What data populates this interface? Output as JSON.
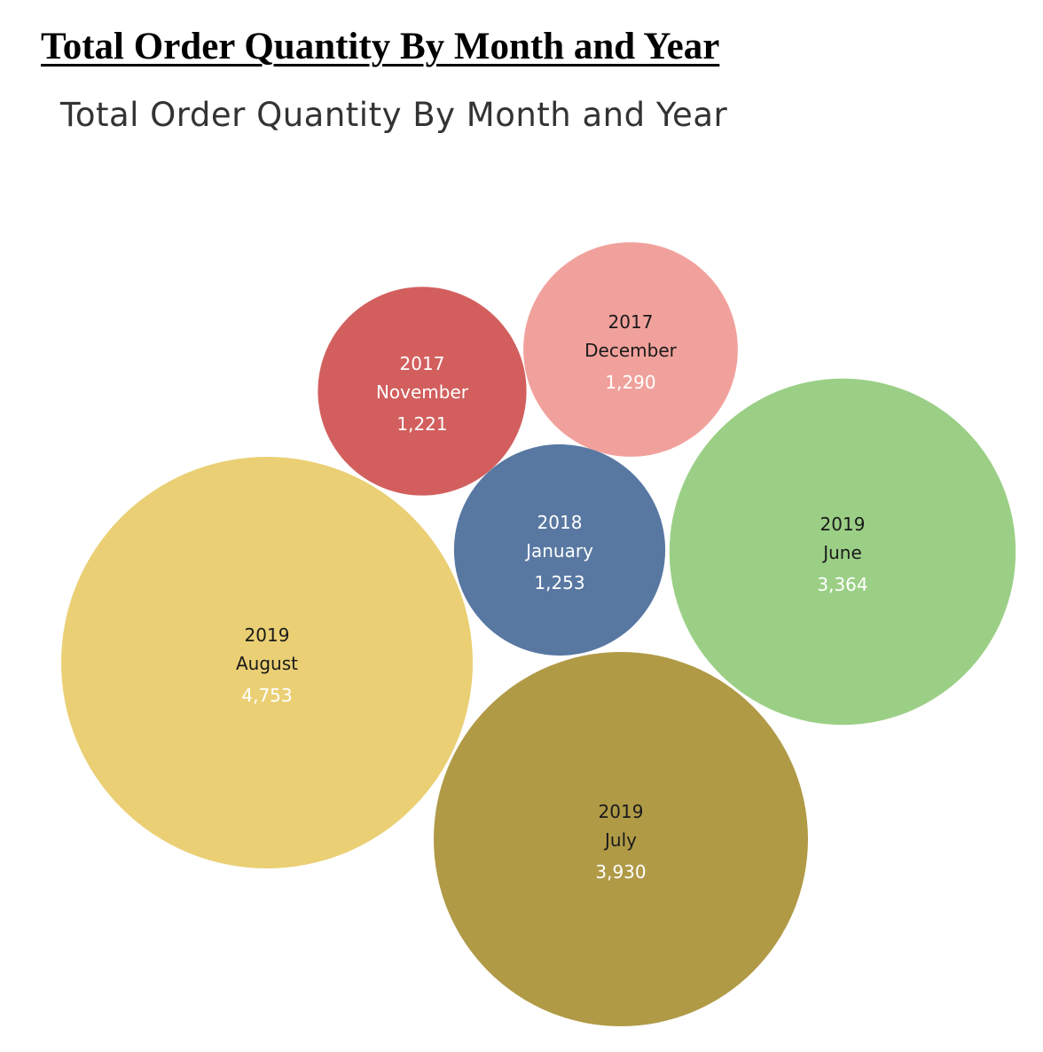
{
  "document": {
    "heading": "Total Order Quantity By Month and Year"
  },
  "chart_data": {
    "type": "bubble",
    "title": "Total Order Quantity By Month and Year",
    "series": [
      {
        "year": "2019",
        "month": "August",
        "value": 4753,
        "value_label": "4,753",
        "color": "#EACF74",
        "label_color": "#1a1a1a",
        "value_color": "#ffffff"
      },
      {
        "year": "2019",
        "month": "July",
        "value": 3930,
        "value_label": "3,930",
        "color": "#B09A46",
        "label_color": "#1a1a1a",
        "value_color": "#ffffff"
      },
      {
        "year": "2019",
        "month": "June",
        "value": 3364,
        "value_label": "3,364",
        "color": "#9BCF86",
        "label_color": "#1a1a1a",
        "value_color": "#ffffff"
      },
      {
        "year": "2017",
        "month": "December",
        "value": 1290,
        "value_label": "1,290",
        "color": "#F1A19C",
        "label_color": "#1a1a1a",
        "value_color": "#ffffff"
      },
      {
        "year": "2018",
        "month": "January",
        "value": 1253,
        "value_label": "1,253",
        "color": "#5878A2",
        "label_color": "#ffffff",
        "value_color": "#ffffff"
      },
      {
        "year": "2017",
        "month": "November",
        "value": 1221,
        "value_label": "1,221",
        "color": "#D25F5E",
        "label_color": "#ffffff",
        "value_color": "#ffffff"
      }
    ]
  }
}
